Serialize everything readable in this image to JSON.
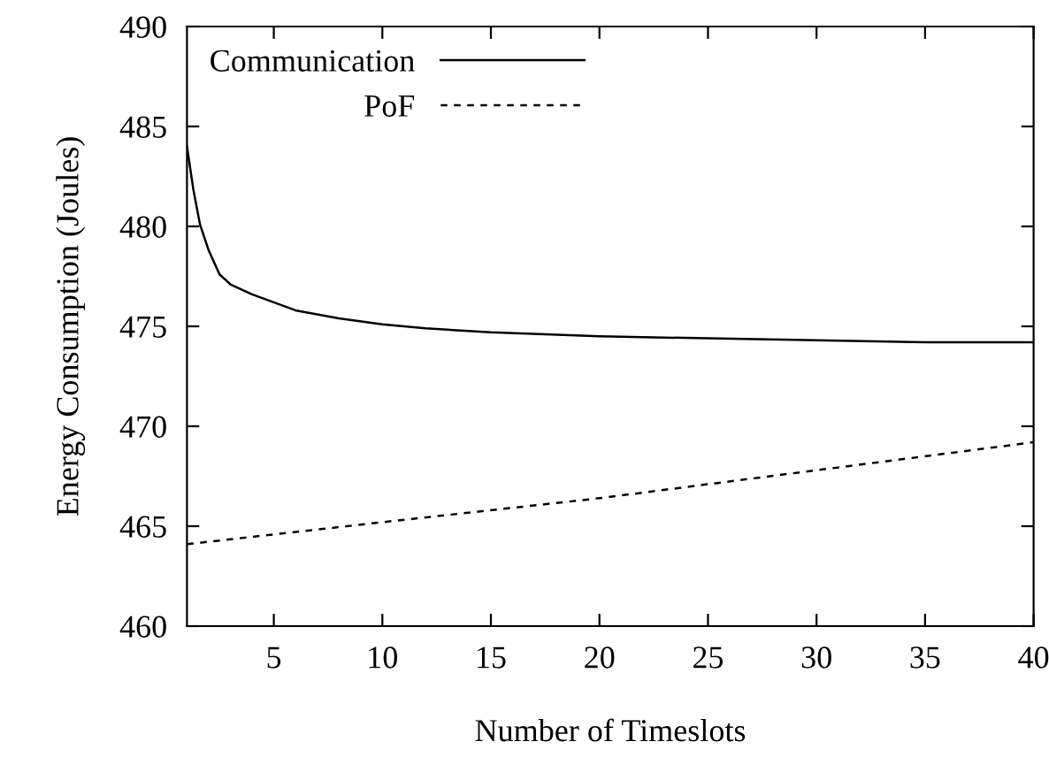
{
  "chart_data": {
    "type": "line",
    "xlabel": "Number of Timeslots",
    "ylabel": "Energy Consumption (Joules)",
    "xlim": [
      1,
      40
    ],
    "xticks": [
      5,
      10,
      15,
      20,
      25,
      30,
      35,
      40
    ],
    "ylim": [
      460,
      490
    ],
    "yticks": [
      460,
      465,
      470,
      475,
      480,
      485,
      490
    ],
    "grid": false,
    "legend": "top left",
    "series": [
      {
        "name": "Communication",
        "color": "#000000",
        "line_style": "solid",
        "x": [
          1,
          1.3,
          1.6,
          2,
          2.5,
          3,
          4,
          5,
          6,
          8,
          10,
          12,
          15,
          20,
          25,
          30,
          35,
          40
        ],
        "values": [
          484,
          481.8,
          480.1,
          478.8,
          477.6,
          477.1,
          476.6,
          476.2,
          475.8,
          475.4,
          475.1,
          474.9,
          474.7,
          474.5,
          474.4,
          474.3,
          474.2,
          474.2
        ]
      },
      {
        "name": "PoF",
        "color": "#000000",
        "line_style": "dashed",
        "x": [
          1,
          10,
          20,
          30,
          40
        ],
        "values": [
          464.1,
          465.2,
          466.4,
          467.8,
          469.2
        ]
      }
    ]
  }
}
